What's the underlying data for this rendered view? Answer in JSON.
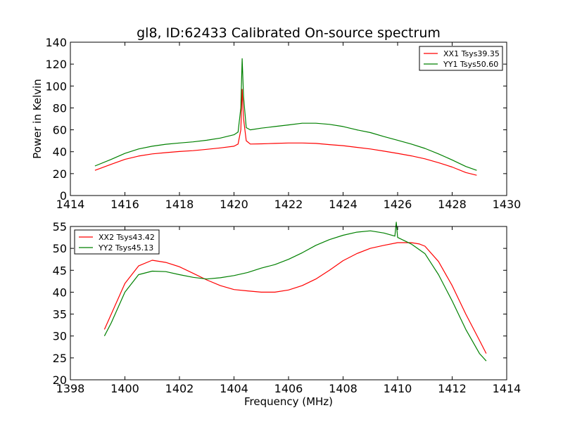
{
  "figure": {
    "title": "gl8, ID:62433 Calibrated On-source spectrum"
  },
  "chart_data": [
    {
      "type": "line",
      "title": "gl8, ID:62433 Calibrated On-source spectrum",
      "xlabel": "",
      "ylabel": "Power in Kelvin",
      "xlim": [
        1414,
        1430
      ],
      "ylim": [
        0,
        140
      ],
      "xticks": [
        "1414",
        "1416",
        "1418",
        "1420",
        "1422",
        "1424",
        "1426",
        "1428",
        "1430"
      ],
      "yticks": [
        "0",
        "20",
        "40",
        "60",
        "80",
        "100",
        "120",
        "140"
      ],
      "grid": false,
      "legend_position": "top-right",
      "series": [
        {
          "name": "XX1 Tsys39.35",
          "color": "#ff0000",
          "x": [
            1414.9,
            1415.5,
            1416.0,
            1416.5,
            1417.0,
            1417.5,
            1418.0,
            1418.5,
            1419.0,
            1419.5,
            1420.0,
            1420.15,
            1420.25,
            1420.3,
            1420.35,
            1420.45,
            1420.6,
            1421.0,
            1421.5,
            1422.0,
            1422.5,
            1423.0,
            1423.5,
            1424.0,
            1424.5,
            1425.0,
            1425.5,
            1426.0,
            1426.5,
            1427.0,
            1427.5,
            1428.0,
            1428.5,
            1428.9
          ],
          "y": [
            23,
            28.5,
            33,
            36,
            38,
            39.2,
            40.2,
            41,
            42.2,
            43.5,
            45,
            47,
            60,
            97,
            70,
            50,
            47,
            47.2,
            47.6,
            48,
            48,
            47.6,
            46.5,
            45.5,
            44,
            42.5,
            40.5,
            38.5,
            36.2,
            33.5,
            30,
            26,
            21,
            18.5
          ]
        },
        {
          "name": "YY1 Tsys50.60",
          "color": "#008000",
          "x": [
            1414.9,
            1415.5,
            1416.0,
            1416.5,
            1417.0,
            1417.5,
            1418.0,
            1418.5,
            1419.0,
            1419.5,
            1420.0,
            1420.15,
            1420.25,
            1420.3,
            1420.35,
            1420.45,
            1420.6,
            1421.0,
            1421.5,
            1422.0,
            1422.5,
            1423.0,
            1423.5,
            1424.0,
            1424.5,
            1425.0,
            1425.5,
            1426.0,
            1426.5,
            1427.0,
            1427.5,
            1428.0,
            1428.5,
            1428.9
          ],
          "y": [
            27,
            33,
            38.5,
            42.5,
            45,
            46.8,
            48,
            49,
            50.5,
            52.5,
            55.5,
            58,
            80,
            125,
            90,
            62,
            60,
            61.5,
            63,
            64.5,
            66,
            66,
            65,
            63,
            60,
            57.5,
            53.8,
            50.5,
            47,
            43,
            38,
            32.5,
            26.5,
            23
          ]
        }
      ]
    },
    {
      "type": "line",
      "title": "",
      "xlabel": "Frequency (MHz)",
      "ylabel": "",
      "xlim": [
        1398,
        1414
      ],
      "ylim": [
        20,
        55
      ],
      "xticks": [
        "1398",
        "1400",
        "1402",
        "1404",
        "1406",
        "1408",
        "1410",
        "1412",
        "1414"
      ],
      "yticks": [
        "20",
        "25",
        "30",
        "35",
        "40",
        "45",
        "50",
        "55"
      ],
      "grid": false,
      "legend_position": "top-left",
      "series": [
        {
          "name": "XX2 Tsys43.42",
          "color": "#ff0000",
          "x": [
            1399.25,
            1399.5,
            1400.0,
            1400.5,
            1401.0,
            1401.5,
            1402.0,
            1402.5,
            1403.0,
            1403.5,
            1404.0,
            1404.5,
            1405.0,
            1405.5,
            1406.0,
            1406.5,
            1407.0,
            1407.5,
            1408.0,
            1408.5,
            1409.0,
            1409.5,
            1410.0,
            1410.5,
            1410.8,
            1411.0,
            1411.5,
            1412.0,
            1412.5,
            1413.0,
            1413.25
          ],
          "y": [
            31.5,
            35,
            42,
            46,
            47.3,
            46.8,
            45.8,
            44.3,
            42.8,
            41.5,
            40.6,
            40.3,
            40,
            40,
            40.5,
            41.5,
            43,
            45,
            47.2,
            48.8,
            50,
            50.7,
            51.3,
            51.3,
            51,
            50.5,
            47,
            41.5,
            35,
            29,
            26
          ]
        },
        {
          "name": "YY2 Tsys45.13",
          "color": "#008000",
          "x": [
            1399.25,
            1399.5,
            1400.0,
            1400.5,
            1401.0,
            1401.5,
            1402.0,
            1402.5,
            1403.0,
            1403.5,
            1404.0,
            1404.5,
            1405.0,
            1405.5,
            1406.0,
            1406.5,
            1407.0,
            1407.5,
            1408.0,
            1408.5,
            1409.0,
            1409.5,
            1409.9,
            1409.95,
            1410.0,
            1410.5,
            1411.0,
            1411.5,
            1412.0,
            1412.5,
            1413.0,
            1413.25
          ],
          "y": [
            30,
            33,
            40,
            44,
            44.8,
            44.7,
            44,
            43.4,
            43,
            43.3,
            43.8,
            44.5,
            45.5,
            46.3,
            47.5,
            49,
            50.7,
            52,
            53,
            53.7,
            54,
            53.5,
            52.8,
            56,
            52.5,
            51,
            48.8,
            44,
            38,
            31.5,
            26,
            24.3
          ]
        }
      ]
    }
  ]
}
